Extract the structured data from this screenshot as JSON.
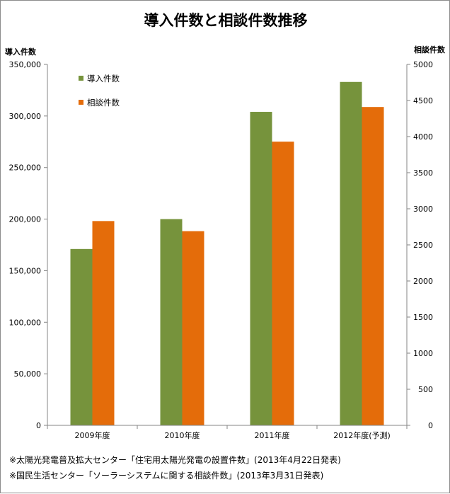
{
  "colors": {
    "series_1": "#76933c",
    "series_2": "#e46c0a",
    "axis": "#868686",
    "grid": "#868686"
  },
  "chart_data": {
    "type": "bar",
    "title": "導入件数と相談件数推移",
    "y_left_label": "導入件数",
    "y_right_label": "相談件数",
    "categories": [
      "2009年度",
      "2010年度",
      "2011年度",
      "2012年度(予測)"
    ],
    "ylim_left": [
      0,
      350000
    ],
    "ylim_right": [
      0,
      5000
    ],
    "yticks_left": [
      "0",
      "50,000",
      "100,000",
      "150,000",
      "200,000",
      "250,000",
      "300,000",
      "350,000"
    ],
    "yticks_right": [
      "0",
      "500",
      "1000",
      "1500",
      "2000",
      "2500",
      "3000",
      "3500",
      "4000",
      "4500",
      "5000"
    ],
    "series": [
      {
        "name": "導入件数",
        "axis": "left",
        "values": [
          171000,
          200000,
          304000,
          333000
        ]
      },
      {
        "name": "相談件数",
        "axis": "right",
        "values": [
          2830,
          2690,
          3930,
          4410
        ]
      }
    ],
    "legend_position": "top-left",
    "grid": false
  },
  "notes": [
    "※太陽光発電普及拡大センター「住宅用太陽光発電の設置件数」(2013年4月22日発表)",
    "※国民生活センター「ソーラーシステムに関する相談件数」(2013年3月31日発表)"
  ]
}
